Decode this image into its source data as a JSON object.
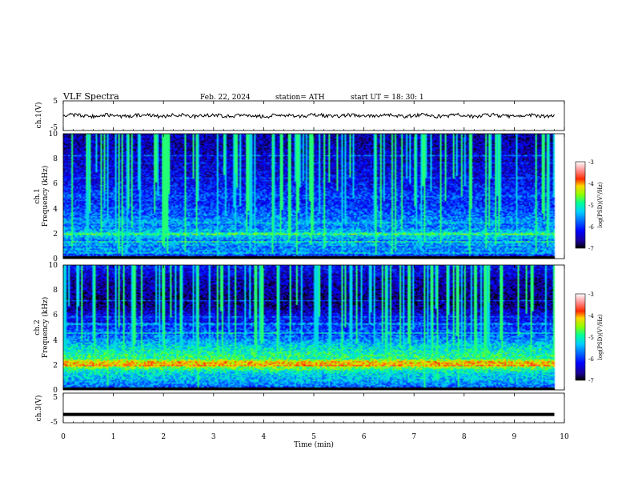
{
  "header": {
    "title": "VLF  Spectra",
    "date": "Feb. 22, 2024",
    "station": "station= ATH",
    "start": "start  UT  =    18: 30: 1"
  },
  "chart_data": [
    {
      "type": "line",
      "panel": "ch1-waveform",
      "ylabel": "ch.1(V)",
      "ylim": [
        -5,
        5
      ],
      "yticks": [
        "5",
        "-5"
      ],
      "xlim": [
        0,
        10
      ],
      "x_extent": [
        0,
        9.8
      ],
      "baseline": 0.0,
      "noise_amplitude": 0.6
    },
    {
      "type": "heatmap",
      "panel": "ch1-spectrogram",
      "ylabel_lines": [
        "ch.1",
        "Frequency  (kHz)"
      ],
      "ylim": [
        0,
        10
      ],
      "yticks": [
        "0",
        "2",
        "4",
        "6",
        "8",
        "10"
      ],
      "xlim": [
        0,
        10
      ],
      "x_extent": [
        0,
        9.8
      ],
      "profile_khz": [
        0,
        0.5,
        1,
        1.5,
        2,
        2.5,
        3,
        3.5,
        4,
        4.5,
        5,
        5.5,
        6,
        6.5,
        7,
        8,
        9,
        10
      ],
      "profile_logpsd": [
        -6.2,
        -5.7,
        -5.5,
        -5.6,
        -5.2,
        -5.7,
        -5.6,
        -5.8,
        -5.9,
        -6.1,
        -5.9,
        -6.1,
        -6.2,
        -6.3,
        -6.3,
        -6.4,
        -6.5,
        -6.5
      ],
      "colorbar": {
        "label": "log(PSD)(V²/Hz)",
        "range": [
          -7,
          -3
        ],
        "ticks": [
          "-3",
          "-4",
          "-5",
          "-6",
          "-7"
        ]
      }
    },
    {
      "type": "heatmap",
      "panel": "ch2-spectrogram",
      "ylabel_lines": [
        "ch.2",
        "Frequency  (kHz)"
      ],
      "ylim": [
        0,
        10
      ],
      "yticks": [
        "0",
        "2",
        "4",
        "6",
        "8",
        "10"
      ],
      "xlim": [
        0,
        10
      ],
      "x_extent": [
        0,
        9.8
      ],
      "profile_khz": [
        0,
        0.5,
        1,
        1.5,
        2,
        2.2,
        2.5,
        3,
        3.5,
        4,
        4.5,
        5,
        5.5,
        6,
        6.5,
        7,
        8,
        9,
        10
      ],
      "profile_logpsd": [
        -6.0,
        -5.6,
        -5.4,
        -5.2,
        -4.3,
        -4.1,
        -4.9,
        -5.1,
        -5.3,
        -5.6,
        -5.8,
        -6.0,
        -6.1,
        -6.3,
        -6.5,
        -6.7,
        -6.6,
        -6.4,
        -6.2
      ],
      "colorbar": {
        "label": "log(PSD)(V²/Hz)",
        "range": [
          -7,
          -3
        ],
        "ticks": [
          "-3",
          "-4",
          "-5",
          "-6",
          "-7"
        ]
      }
    },
    {
      "type": "line",
      "panel": "ch3-waveform",
      "ylabel": "ch.3(V)",
      "ylim": [
        -5,
        5
      ],
      "yticks": [
        "5",
        "-5"
      ],
      "xlim": [
        0,
        10
      ],
      "x_extent": [
        0,
        9.8
      ],
      "baseline": -2.2,
      "noise_amplitude": 0.05
    }
  ],
  "x_axis": {
    "label": "Time  (min)",
    "ticks": [
      "0",
      "1",
      "2",
      "3",
      "4",
      "5",
      "6",
      "7",
      "8",
      "9",
      "10"
    ]
  },
  "colors": {
    "colormap": [
      "#000000",
      "#1a0090",
      "#0000ff",
      "#0060ff",
      "#00c8ff",
      "#00ff9a",
      "#8cff00",
      "#ffd800",
      "#ff2a00",
      "#ff9090",
      "#ffffff"
    ],
    "trace": "#000000"
  }
}
